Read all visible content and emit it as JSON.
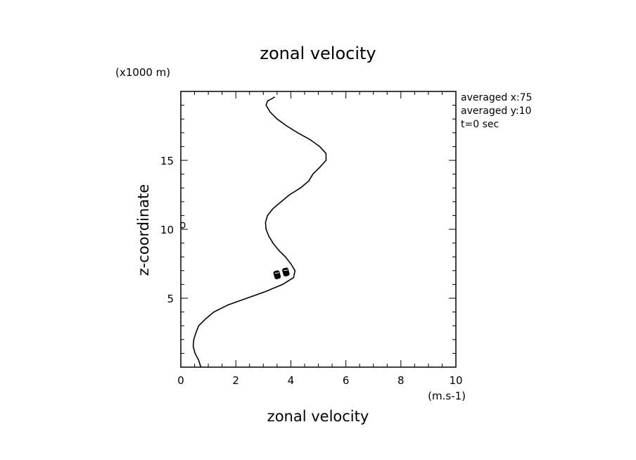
{
  "chart_data": {
    "type": "line",
    "title": "zonal velocity",
    "xlabel": "zonal velocity",
    "ylabel": "z-coordinate",
    "x_unit": "(m.s-1)",
    "y_unit": "(x1000 m)",
    "xlim": [
      0,
      10
    ],
    "ylim": [
      0,
      20
    ],
    "x_ticks": [
      0,
      2,
      4,
      6,
      8,
      10
    ],
    "y_ticks": [
      5,
      10,
      15
    ],
    "grid": false,
    "annotations": [
      "averaged  x:75",
      "averaged  y:10",
      "t=0 sec"
    ],
    "series": [
      {
        "x": [
          0.73,
          0.65,
          0.52,
          0.45,
          0.47,
          0.55,
          0.65,
          0.9,
          1.2,
          1.7,
          2.4,
          3.1,
          3.7,
          4.1,
          4.15,
          4.0,
          3.8,
          3.55,
          3.35,
          3.2,
          3.1,
          3.08,
          3.15,
          3.35,
          3.65,
          3.95,
          4.35,
          4.65,
          4.8,
          5.05,
          5.28,
          5.28,
          5.05,
          4.7,
          4.25,
          3.85,
          3.5,
          3.25,
          3.1,
          3.15,
          3.42
        ],
        "y": [
          0.0,
          0.5,
          1.0,
          1.5,
          2.0,
          2.5,
          3.0,
          3.5,
          4.0,
          4.5,
          5.0,
          5.5,
          6.0,
          6.5,
          7.0,
          7.5,
          8.0,
          8.5,
          9.0,
          9.5,
          10.0,
          10.5,
          11.0,
          11.5,
          12.0,
          12.5,
          13.0,
          13.5,
          14.0,
          14.5,
          15.0,
          15.5,
          16.0,
          16.5,
          17.0,
          17.5,
          18.0,
          18.5,
          19.0,
          19.3,
          19.6
        ]
      }
    ],
    "marker_small": {
      "x": 0.02,
      "y": 10.3
    },
    "marker_blobs": [
      {
        "x": 3.5,
        "y": 6.7
      },
      {
        "x": 3.82,
        "y": 6.9
      }
    ]
  }
}
